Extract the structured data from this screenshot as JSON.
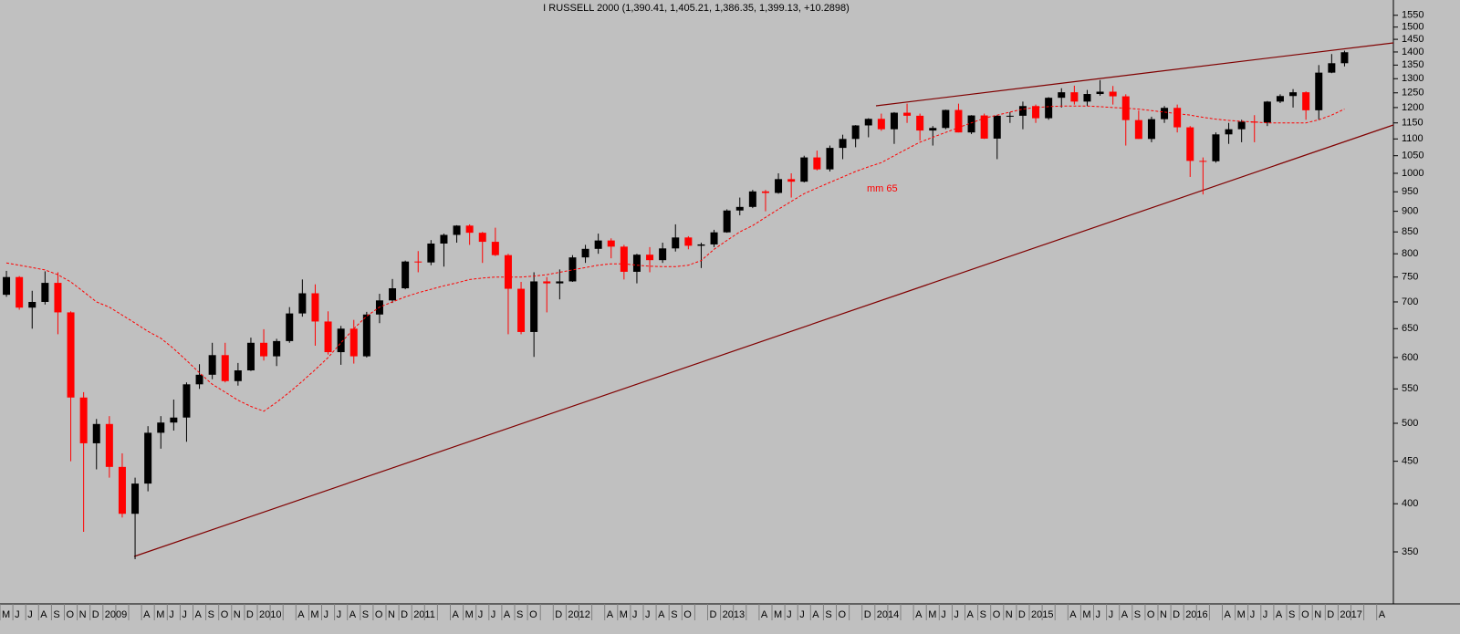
{
  "chart_data": {
    "type": "candlestick",
    "title": "I RUSSELL 2000 (1,390.41, 1,405.21, 1,386.35, 1,399.13, +10.2898)",
    "x_labels": [
      "M",
      "J",
      "J",
      "A",
      "S",
      "O",
      "N",
      "D",
      "2009",
      null,
      null,
      "A",
      "M",
      "J",
      "J",
      "A",
      "S",
      "O",
      "N",
      "D",
      "2010",
      null,
      null,
      "A",
      "M",
      "J",
      "J",
      "A",
      "S",
      "O",
      "N",
      "D",
      "2011",
      null,
      null,
      "A",
      "M",
      "J",
      "J",
      "A",
      "S",
      "O",
      null,
      "D",
      "2012",
      null,
      null,
      "A",
      "M",
      "J",
      "J",
      "A",
      "S",
      "O",
      null,
      "D",
      "2013",
      null,
      null,
      "A",
      "M",
      "J",
      "J",
      "A",
      "S",
      "O",
      null,
      "D",
      "2014",
      null,
      null,
      "A",
      "M",
      "J",
      "J",
      "A",
      "S",
      "O",
      "N",
      "D",
      "2015",
      null,
      null,
      "A",
      "M",
      "J",
      "J",
      "A",
      "S",
      "O",
      "N",
      "D",
      "2016",
      null,
      null,
      "A",
      "M",
      "J",
      "J",
      "A",
      "S",
      "O",
      "N",
      "D",
      "2017",
      null,
      null,
      "A"
    ],
    "open": [
      714,
      750,
      689,
      700,
      738,
      680,
      537,
      473,
      499,
      443,
      389,
      423,
      487,
      501,
      508,
      557,
      572,
      604,
      562,
      579,
      625,
      602,
      628,
      678,
      717,
      663,
      609,
      650,
      602,
      676,
      703,
      727,
      783,
      781,
      823,
      843,
      865,
      848,
      827,
      797,
      726,
      644,
      741,
      737,
      741,
      792,
      811,
      830,
      816,
      761,
      798,
      786,
      812,
      837,
      818,
      821,
      849,
      902,
      911,
      951,
      947,
      984,
      977,
      1045,
      1011,
      1073,
      1100,
      1142,
      1163,
      1130,
      1183,
      1173,
      1126,
      1134,
      1192,
      1120,
      1174,
      1101,
      1173,
      1173,
      1205,
      1165,
      1233,
      1252,
      1220,
      1246,
      1254,
      1238,
      1159,
      1100,
      1162,
      1199,
      1136,
      1035,
      1034,
      1114,
      1130,
      1154,
      1151,
      1220,
      1239,
      1252,
      1191,
      1322,
      1357,
      null,
      null,
      null
    ],
    "high": [
      763,
      752,
      722,
      762,
      760,
      682,
      545,
      506,
      510,
      460,
      430,
      496,
      510,
      534,
      560,
      589,
      625,
      625,
      591,
      634,
      649,
      632,
      690,
      745,
      735,
      682,
      655,
      666,
      681,
      716,
      746,
      785,
      806,
      831,
      846,
      866,
      868,
      850,
      860,
      800,
      740,
      760,
      750,
      766,
      797,
      820,
      846,
      835,
      820,
      800,
      815,
      825,
      868,
      840,
      825,
      855,
      905,
      935,
      955,
      955,
      1000,
      1000,
      1050,
      1065,
      1080,
      1113,
      1143,
      1165,
      1180,
      1185,
      1213,
      1180,
      1140,
      1193,
      1213,
      1175,
      1180,
      1175,
      1185,
      1220,
      1210,
      1235,
      1266,
      1275,
      1260,
      1295,
      1274,
      1245,
      1190,
      1170,
      1205,
      1210,
      1140,
      1045,
      1120,
      1150,
      1160,
      1175,
      1222,
      1245,
      1263,
      1255,
      1350,
      1392,
      1405,
      null,
      null,
      null
    ],
    "low": [
      710,
      685,
      650,
      695,
      640,
      450,
      370,
      440,
      430,
      385,
      343,
      414,
      466,
      490,
      475,
      550,
      565,
      560,
      555,
      578,
      595,
      586,
      625,
      672,
      620,
      605,
      588,
      590,
      600,
      660,
      698,
      725,
      760,
      775,
      772,
      825,
      820,
      780,
      795,
      640,
      640,
      601,
      680,
      705,
      740,
      780,
      800,
      790,
      745,
      737,
      760,
      780,
      805,
      810,
      769,
      815,
      848,
      890,
      908,
      900,
      945,
      935,
      975,
      1008,
      1005,
      1040,
      1075,
      1105,
      1125,
      1085,
      1150,
      1095,
      1080,
      1130,
      1120,
      1115,
      1100,
      1040,
      1150,
      1130,
      1150,
      1160,
      1200,
      1210,
      1205,
      1240,
      1210,
      1080,
      1100,
      1090,
      1150,
      1120,
      990,
      943,
      1030,
      1085,
      1090,
      1090,
      1140,
      1215,
      1200,
      1160,
      1160,
      1320,
      1345,
      null,
      null,
      null
    ],
    "close": [
      750,
      689,
      700,
      738,
      680,
      537,
      473,
      499,
      443,
      389,
      423,
      487,
      501,
      508,
      557,
      572,
      604,
      562,
      579,
      625,
      602,
      628,
      678,
      717,
      663,
      609,
      650,
      602,
      676,
      703,
      727,
      783,
      781,
      823,
      843,
      865,
      848,
      827,
      797,
      726,
      644,
      741,
      737,
      741,
      792,
      811,
      830,
      816,
      761,
      798,
      786,
      812,
      837,
      818,
      821,
      849,
      902,
      911,
      951,
      947,
      984,
      977,
      1045,
      1011,
      1073,
      1100,
      1142,
      1163,
      1130,
      1183,
      1173,
      1126,
      1134,
      1192,
      1120,
      1174,
      1101,
      1173,
      1173,
      1205,
      1165,
      1233,
      1252,
      1220,
      1246,
      1254,
      1238,
      1159,
      1100,
      1162,
      1199,
      1136,
      1035,
      1034,
      1114,
      1130,
      1154,
      1151,
      1220,
      1239,
      1252,
      1191,
      1322,
      1357,
      1399,
      null,
      null,
      null
    ],
    "up_color": "#000000",
    "down_color": "#ff0000",
    "lines": [
      {
        "name": "mm 65",
        "color": "#ff0000",
        "dashed": true,
        "values": [
          780,
          775,
          770,
          765,
          755,
          740,
          720,
          700,
          690,
          675,
          660,
          645,
          633,
          615,
          595,
          575,
          557,
          545,
          533,
          524,
          517,
          530,
          545,
          562,
          580,
          600,
          625,
          650,
          673,
          690,
          700,
          710,
          718,
          725,
          732,
          738,
          745,
          748,
          750,
          750,
          750,
          752,
          755,
          760,
          765,
          770,
          775,
          778,
          778,
          775,
          773,
          772,
          772,
          775,
          785,
          810,
          830,
          850,
          865,
          885,
          905,
          925,
          945,
          960,
          975,
          990,
          1005,
          1018,
          1030,
          1050,
          1070,
          1090,
          1105,
          1120,
          1135,
          1150,
          1165,
          1175,
          1185,
          1195,
          1200,
          1203,
          1205,
          1205,
          1205,
          1203,
          1200,
          1198,
          1195,
          1190,
          1185,
          1180,
          1175,
          1168,
          1162,
          1158,
          1155,
          1153,
          1150,
          1150,
          1150,
          1150,
          1160,
          1175,
          1195,
          null,
          null,
          null
        ]
      }
    ],
    "ylim": [
      303,
      1617
    ],
    "yticks": [
      350,
      400,
      450,
      500,
      550,
      600,
      650,
      700,
      750,
      800,
      850,
      900,
      950,
      1000,
      1050,
      1100,
      1150,
      1200,
      1250,
      1300,
      1350,
      1400,
      1450,
      1500,
      1550
    ],
    "log_scale": true,
    "background": "#c0c0c0"
  }
}
